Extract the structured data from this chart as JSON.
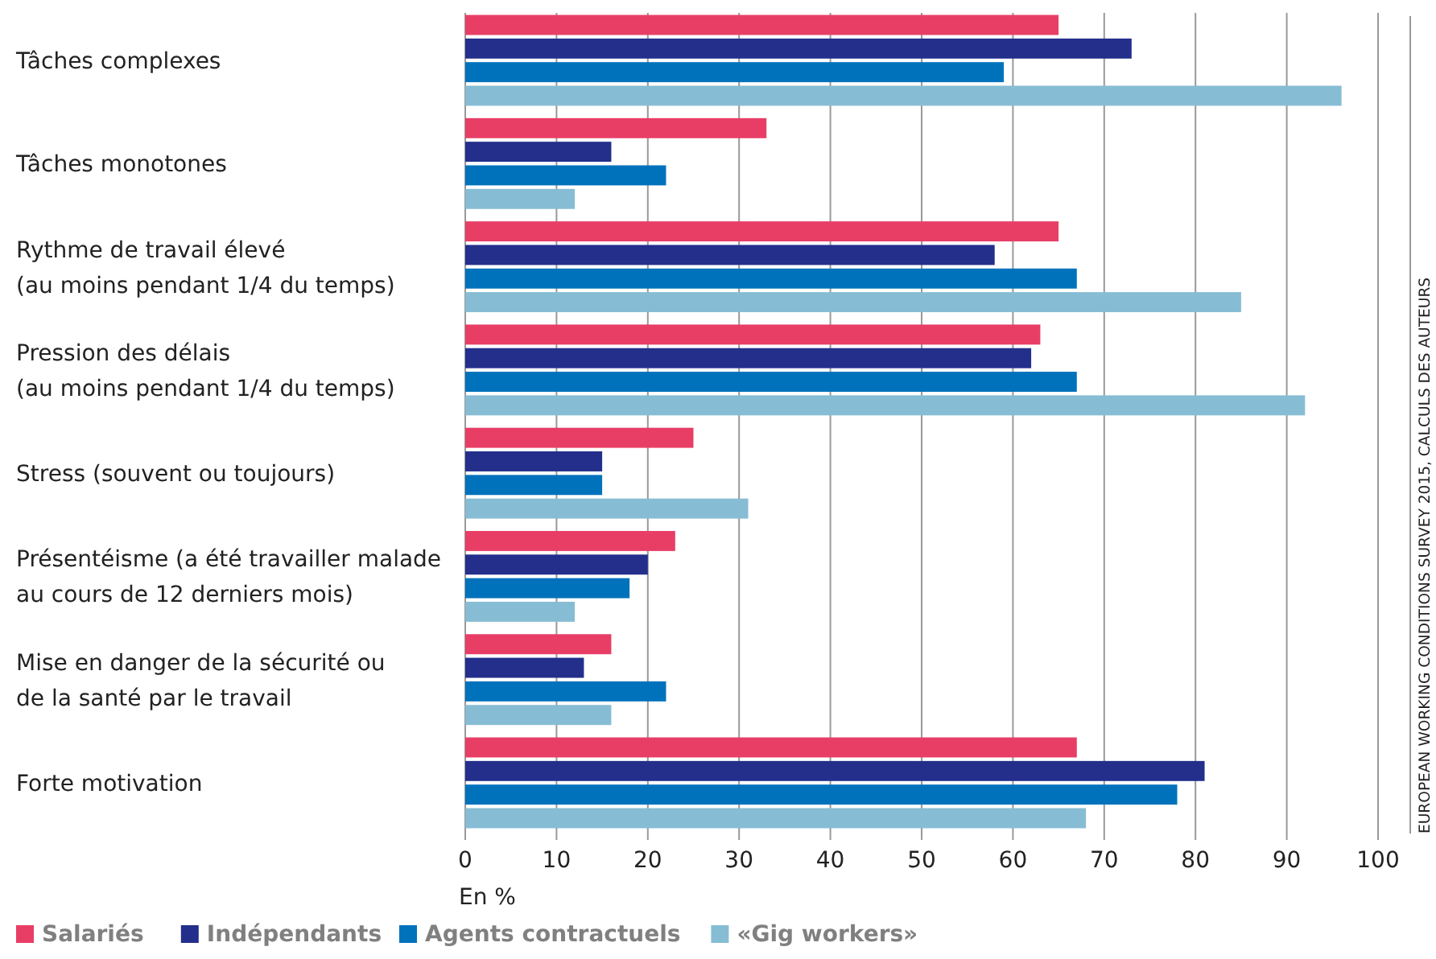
{
  "chart_data": {
    "type": "bar",
    "orientation": "horizontal",
    "xlabel": "En %",
    "categories": [
      "Tâches complexes",
      "Tâches monotones",
      "Rythme de travail élevé\n(au moins pendant 1/4 du temps)",
      "Pression des délais\n(au moins pendant 1/4 du temps)",
      "Stress (souvent ou toujours)",
      "Présentéisme (a été travailler malade\nau cours de 12 derniers mois)",
      "Mise en danger de la sécurité ou\nde la santé par le travail",
      "Forte motivation"
    ],
    "series": [
      {
        "name": "Salariés",
        "color": "#e83e66",
        "values": [
          65,
          33,
          65,
          63,
          25,
          23,
          16,
          67
        ]
      },
      {
        "name": "Indépendants",
        "color": "#232f8b",
        "values": [
          73,
          16,
          58,
          62,
          15,
          20,
          13,
          81
        ]
      },
      {
        "name": "Agents contractuels",
        "color": "#0072bc",
        "values": [
          59,
          22,
          67,
          67,
          15,
          18,
          22,
          78
        ]
      },
      {
        "name": "«Gig workers»",
        "color": "#86bdd4",
        "values": [
          96,
          12,
          85,
          92,
          31,
          12,
          16,
          68
        ]
      }
    ],
    "xlim": [
      0,
      100
    ],
    "xticks": [
      0,
      10,
      20,
      30,
      40,
      50,
      60,
      70,
      80,
      90,
      100
    ],
    "grid": "x",
    "legend": "bottom",
    "annotations": [
      "EUROPEAN WORKING CONDITIONS SURVEY 2015, CALCULS DES AUTEURS"
    ]
  }
}
